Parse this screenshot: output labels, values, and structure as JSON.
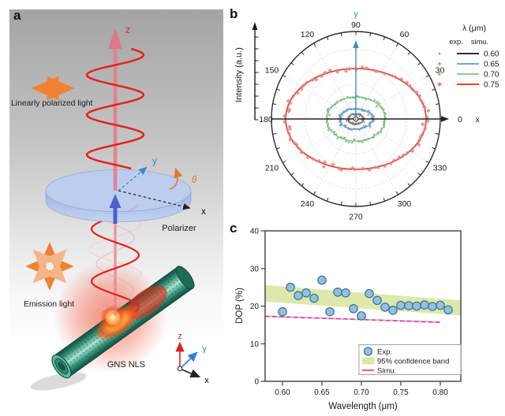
{
  "panels": {
    "a": {
      "label": "a",
      "texts": {
        "z": "z",
        "y": "y",
        "x": "x",
        "theta": "θ",
        "linear": "Linearly polarized light",
        "polarizer": "Polarizer",
        "emission": "Emission light",
        "gns": "GNS NLS",
        "triad_z": "z",
        "triad_y": "y",
        "triad_x": "x"
      }
    },
    "b": {
      "label": "b"
    },
    "c": {
      "label": "c"
    }
  },
  "chart_data": [
    {
      "type": "polar-line",
      "panel": "b",
      "radial_axis_label": "Intensity (a.u.)",
      "angle_ticks_deg": [
        0,
        30,
        60,
        90,
        120,
        150,
        180,
        210,
        240,
        270,
        300,
        330
      ],
      "cartesian_axis_labels": {
        "x": "x",
        "y": "y"
      },
      "zero_label": "0",
      "legend": {
        "title": "λ (μm)",
        "columns": [
          "exp.",
          "simu."
        ],
        "entries": [
          {
            "label": "0.60",
            "line_color": "#2f2f2f",
            "exp_color": "#8d8d8d",
            "marker": "dot"
          },
          {
            "label": "0.65",
            "line_color": "#74a9d0",
            "exp_color": "#6f9fc8",
            "marker": "dot"
          },
          {
            "label": "0.70",
            "line_color": "#8fca9a",
            "exp_color": "#7cbd7c",
            "marker": "dot"
          },
          {
            "label": "0.75",
            "line_color": "#e8492e",
            "exp_color": "#dc8391",
            "marker": "diamond"
          }
        ]
      },
      "series": [
        {
          "wavelength_um": 0.6,
          "rx_frac": 0.093,
          "ry_frac": 0.058,
          "scatter_noise": 0.3,
          "n_points": 58
        },
        {
          "wavelength_um": 0.65,
          "rx_frac": 0.196,
          "ry_frac": 0.117,
          "scatter_noise": 0.17,
          "n_points": 64
        },
        {
          "wavelength_um": 0.7,
          "rx_frac": 0.346,
          "ry_frac": 0.252,
          "scatter_noise": 0.085,
          "n_points": 72
        },
        {
          "wavelength_um": 0.75,
          "rx_frac": 0.832,
          "ry_frac": 0.577,
          "scatter_noise": 0.055,
          "n_points": 74
        }
      ],
      "grid": {
        "rings_frac": [
          0.2,
          0.4,
          0.6,
          0.8
        ],
        "radials_deg_step": 30,
        "outer_tick_step_deg": 10
      },
      "note": "simulated curves are ellipses elongated along x; experimental points scatter around each curve"
    },
    {
      "type": "scatter",
      "panel": "c",
      "xlabel": "Wavelength (μm)",
      "ylabel": "DOP (%)",
      "xlim": [
        0.578,
        0.826
      ],
      "ylim": [
        0,
        40
      ],
      "x_ticks": [
        0.6,
        0.65,
        0.7,
        0.75,
        0.8
      ],
      "x_tick_labels": [
        "0.60",
        "0.65",
        "0.70",
        "0.75",
        "0.80"
      ],
      "y_ticks": [
        0,
        10,
        20,
        30,
        40
      ],
      "exp_points": [
        [
          0.6,
          18.5
        ],
        [
          0.61,
          25.0
        ],
        [
          0.62,
          22.8
        ],
        [
          0.63,
          23.5
        ],
        [
          0.64,
          22.1
        ],
        [
          0.65,
          26.9
        ],
        [
          0.66,
          18.5
        ],
        [
          0.67,
          23.7
        ],
        [
          0.68,
          23.5
        ],
        [
          0.69,
          19.3
        ],
        [
          0.7,
          17.4
        ],
        [
          0.71,
          23.3
        ],
        [
          0.72,
          21.5
        ],
        [
          0.73,
          19.7
        ],
        [
          0.74,
          18.9
        ],
        [
          0.75,
          20.2
        ],
        [
          0.76,
          20.1
        ],
        [
          0.77,
          20.0
        ],
        [
          0.78,
          20.3
        ],
        [
          0.79,
          19.9
        ],
        [
          0.8,
          20.2
        ],
        [
          0.81,
          19.0
        ]
      ],
      "confidence_band": {
        "x": [
          0.578,
          0.826
        ],
        "upper": [
          25.6,
          21.5
        ],
        "lower": [
          21.2,
          17.5
        ]
      },
      "simu_line": {
        "x": [
          0.578,
          0.8
        ],
        "y": [
          17.3,
          15.7
        ]
      },
      "legend": {
        "entries": [
          "Exp.",
          "95% confidence band",
          "Simu."
        ]
      },
      "colors": {
        "exp_fill": "#8fc1e1",
        "exp_stroke": "#41708f",
        "band": "#dbe8a8",
        "simu": "#c73a90",
        "simu_light": "#f2aed0"
      }
    }
  ]
}
